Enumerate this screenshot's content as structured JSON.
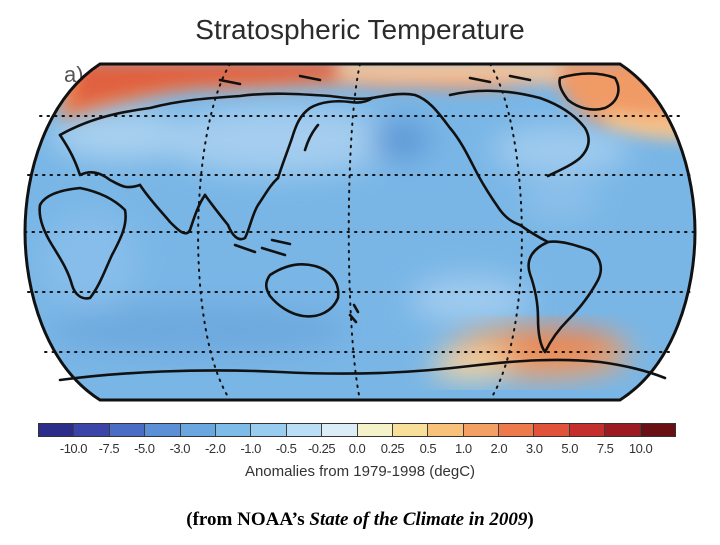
{
  "title": "Stratospheric Temperature",
  "panel_label": "a)",
  "colorbar": {
    "tick_labels": [
      "-10.0",
      "-7.5",
      "-5.0",
      "-3.0",
      "-2.0",
      "-1.0",
      "-0.5",
      "-0.25",
      "0.0",
      "0.25",
      "0.5",
      "1.0",
      "2.0",
      "3.0",
      "5.0",
      "7.5",
      "10.0"
    ],
    "colors": [
      "#2c2c8a",
      "#3b44a8",
      "#4a6cc4",
      "#5b8fd6",
      "#6aa6e0",
      "#7dbbe8",
      "#98cdf0",
      "#b9def5",
      "#dbeef7",
      "#f4f2c8",
      "#f8df9a",
      "#f8c27a",
      "#f4a064",
      "#ee7a4c",
      "#e0533a",
      "#c42e2c",
      "#9c1b22",
      "#6a0f14"
    ],
    "units_label": "Anomalies from 1979-1998 (degC)"
  },
  "map": {
    "background_color": "#7ab8e6",
    "features": [
      "warm-anomaly-arctic-band",
      "warm-anomaly-southern-ocean",
      "coastlines",
      "dotted-graticule"
    ]
  },
  "caption": {
    "prefix": "(from NOAA’s ",
    "italic": "State of the Climate in 2009",
    "suffix": ")"
  }
}
